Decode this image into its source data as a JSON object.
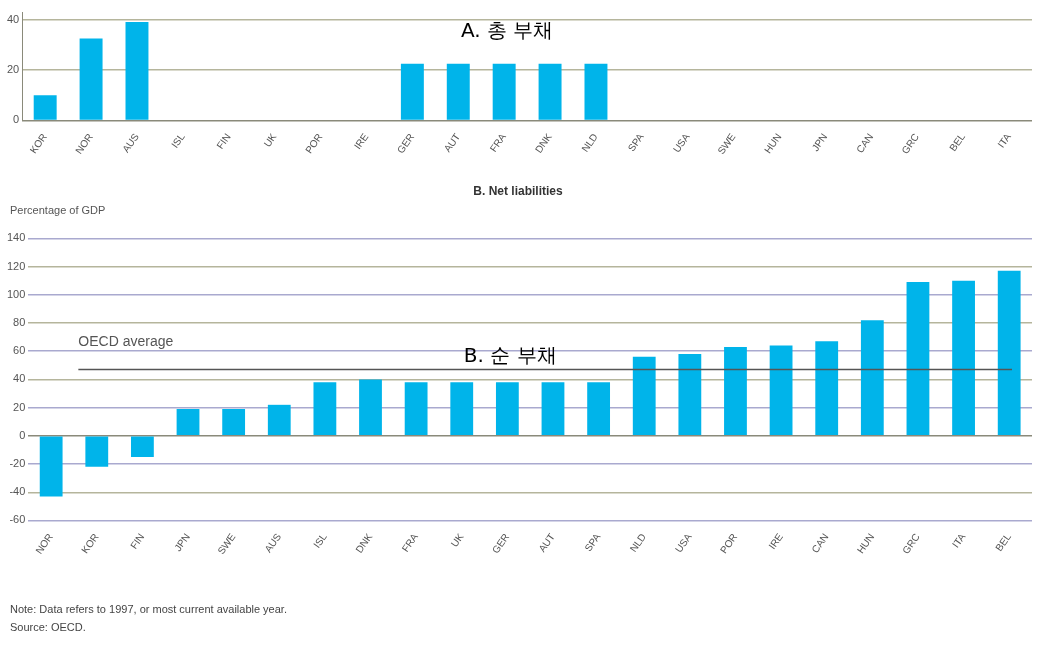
{
  "chart_data": [
    {
      "type": "bar",
      "categories": [
        "KOR",
        "NOR",
        "AUS",
        "ISL",
        "FIN",
        "UK",
        "POR",
        "IRE",
        "GER",
        "AUT",
        "FRA",
        "DNK",
        "NLD",
        "SPA",
        "USA",
        "SWE",
        "HUN",
        "JPN",
        "CAN",
        "GRC",
        "BEL",
        "ITA"
      ],
      "values": [
        10,
        32.5,
        39,
        null,
        null,
        null,
        null,
        null,
        22.5,
        22.5,
        22.5,
        22.5,
        22.5,
        null,
        null,
        null,
        null,
        null,
        null,
        null,
        null,
        null
      ],
      "color": "#00b4ea",
      "ylim": [
        0,
        43
      ],
      "yticks": [
        0,
        20,
        40
      ],
      "grid": "y",
      "legend": false,
      "annotations": [
        "A. 총 부채"
      ]
    },
    {
      "type": "bar",
      "title": "B. Net liabilities",
      "ylabel": "Percentage of GDP",
      "categories": [
        "NOR",
        "KOR",
        "FIN",
        "JPN",
        "SWE",
        "AUS",
        "ISL",
        "DNK",
        "FRA",
        "UK",
        "GER",
        "AUT",
        "SPA",
        "NLD",
        "USA",
        "POR",
        "IRE",
        "CAN",
        "HUN",
        "GRC",
        "ITA",
        "BEL"
      ],
      "values": [
        -43,
        -22,
        -15,
        19,
        19,
        22,
        38,
        40,
        38,
        38,
        38,
        38,
        38,
        56,
        58,
        63,
        64,
        67,
        82,
        109,
        110,
        117
      ],
      "color": "#00b4ea",
      "ylim": [
        -60,
        140
      ],
      "yticks": [
        -60,
        -40,
        -20,
        0,
        20,
        40,
        60,
        80,
        100,
        120,
        140
      ],
      "grid": "y",
      "legend": false,
      "ref_lines": [
        {
          "axis": "y",
          "value": 47,
          "label": "OECD average",
          "color": "#555555"
        }
      ],
      "annotations": [
        "B. 순 부채",
        "Note: Data refers to 1997, or most current available year.",
        "Source: OECD."
      ]
    }
  ]
}
